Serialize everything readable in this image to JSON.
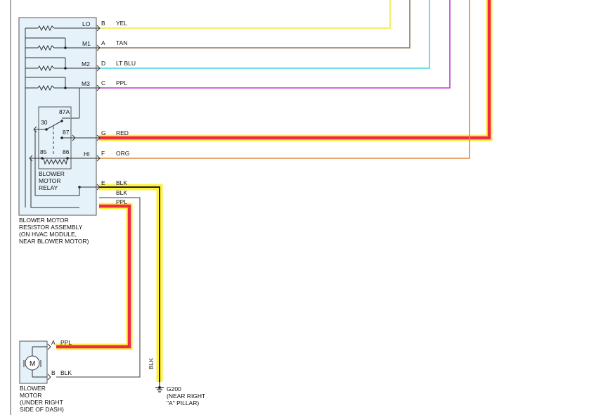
{
  "resistor_assembly": {
    "name_lines": [
      "BLOWER MOTOR",
      "RESISTOR ASSEMBLY",
      "(ON HVAC MODULE,",
      "NEAR BLOWER MOTOR)"
    ],
    "terminals": [
      "LO",
      "M1",
      "M2",
      "M3",
      "HI"
    ]
  },
  "relay": {
    "name_lines": [
      "BLOWER",
      "MOTOR",
      "RELAY"
    ],
    "pins": [
      "87A",
      "30",
      "87",
      "85",
      "86"
    ]
  },
  "connector_pins": [
    "B",
    "A",
    "D",
    "C",
    "G",
    "F",
    "E"
  ],
  "wires": [
    {
      "pin": "B",
      "color_label": "YEL",
      "stroke": "#f0ea3c"
    },
    {
      "pin": "A",
      "color_label": "TAN",
      "stroke": "#8b7a56"
    },
    {
      "pin": "D",
      "color_label": "LT BLU",
      "stroke": "#3fd3e6"
    },
    {
      "pin": "C",
      "color_label": "PPL",
      "stroke": "#c13bc8"
    },
    {
      "pin": "G",
      "color_label": "RED",
      "stroke": "#c8191e"
    },
    {
      "pin": "F",
      "color_label": "ORG",
      "stroke": "#e28a3c"
    },
    {
      "pin": "E",
      "color_label": "BLK",
      "stroke": "#222222"
    }
  ],
  "lower_wires": [
    {
      "color_label": "BLK"
    },
    {
      "color_label": "PPL"
    }
  ],
  "vertical_wire_label": "BLK",
  "blower_motor": {
    "symbol": "M",
    "name_lines": [
      "BLOWER",
      "MOTOR",
      "(UNDER RIGHT",
      "SIDE OF DASH)"
    ],
    "pins": [
      {
        "pin": "A",
        "color_label": "PPL"
      },
      {
        "pin": "B",
        "color_label": "BLK"
      }
    ]
  },
  "ground": {
    "id": "G200",
    "desc_lines": [
      "(NEAR RIGHT",
      "\"A\" PILLAR)"
    ]
  },
  "colors": {
    "highlight_yellow": "#fff23a",
    "highlight_red": "#f0284a",
    "component_fill": "#e6f2fa"
  }
}
